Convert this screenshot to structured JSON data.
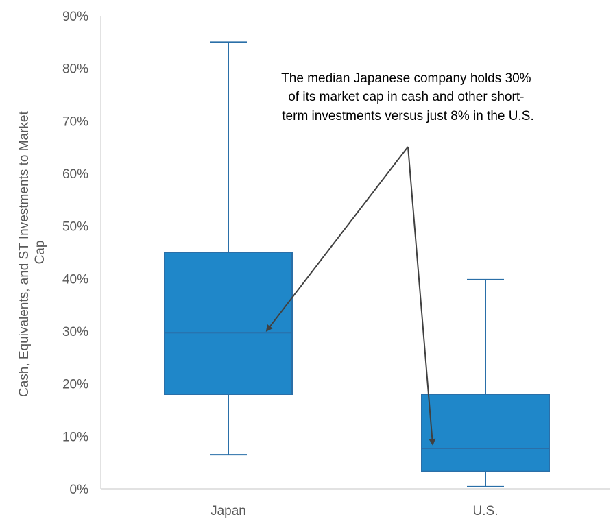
{
  "chart_data": {
    "type": "box",
    "ylabel": [
      "Cash, Equivalents, and ST Investments to Market",
      "Cap"
    ],
    "ylim": [
      0,
      90
    ],
    "yticks": [
      "0%",
      "10%",
      "20%",
      "30%",
      "40%",
      "50%",
      "60%",
      "70%",
      "80%",
      "90%"
    ],
    "categories": [
      "Japan",
      "U.S."
    ],
    "boxes": [
      {
        "category": "Japan",
        "min": 6.5,
        "q1": 18,
        "median": 29.7,
        "q3": 45,
        "max": 85
      },
      {
        "category": "U.S.",
        "min": 0.4,
        "q1": 3.3,
        "median": 7.7,
        "q3": 18,
        "max": 39.8
      }
    ],
    "annotation": {
      "lines": [
        "The median Japanese company holds 30%",
        "of its market cap in cash and other short-",
        "term investments versus just 8% in the U.S."
      ]
    },
    "colors": {
      "box_fill": "#1f87c9",
      "box_edge": "#2a6fa8",
      "axis": "#d9d9d9",
      "text": "#595959",
      "arrow": "#404040"
    }
  }
}
